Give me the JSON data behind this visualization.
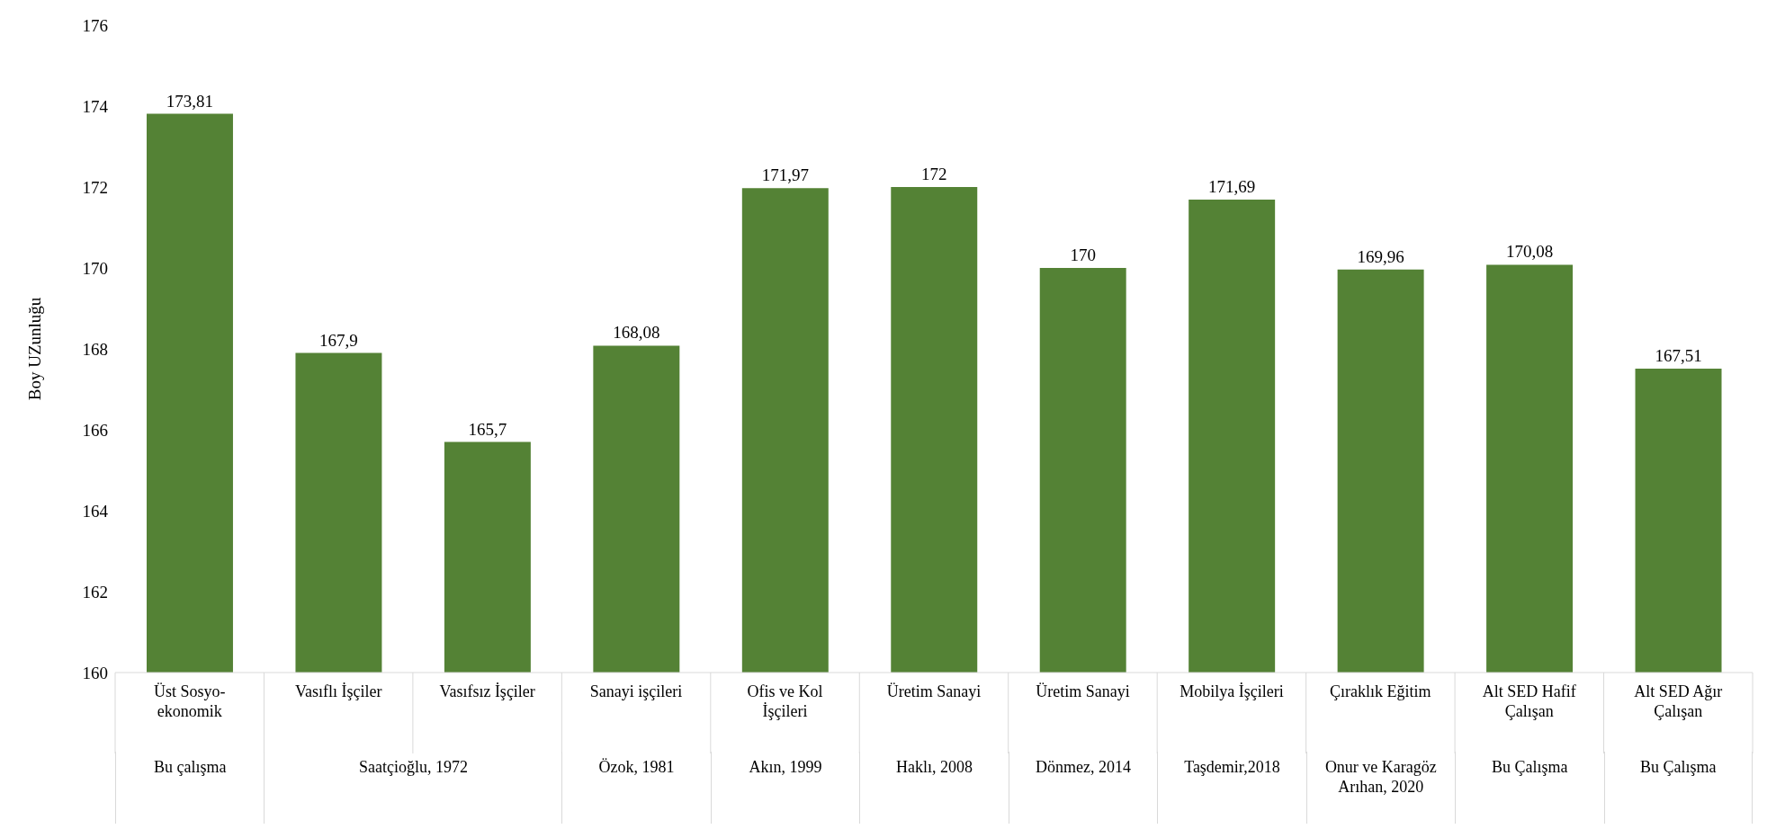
{
  "chart_data": {
    "type": "bar",
    "ylabel": "Boy UZunluğu",
    "categories": [
      "Üst Sosyo-ekonomik",
      "Vasıflı İşçiler",
      "Vasıfsız İşçiler",
      "Sanayi işçileri",
      "Ofis ve Kol İşçileri",
      "Üretim Sanayi",
      "Üretim Sanayi",
      "Mobilya İşçileri",
      "Çıraklık Eğitim",
      "Alt SED Hafif Çalışan",
      "Alt SED Ağır Çalışan"
    ],
    "values": [
      173.81,
      167.9,
      165.7,
      168.08,
      171.97,
      172,
      170,
      171.69,
      169.96,
      170.08,
      167.51
    ],
    "value_labels": [
      "173,81",
      "167,9",
      "165,7",
      "168,08",
      "171,97",
      "172",
      "170",
      "171,69",
      "169,96",
      "170,08",
      "167,51"
    ],
    "color": "#548235",
    "ylim": [
      160,
      176
    ],
    "yticks": [
      160,
      162,
      164,
      166,
      168,
      170,
      172,
      174,
      176
    ],
    "grid": false,
    "legend": false,
    "annotations": [
      "Bu çalışma",
      "Saatçioğlu, 1972",
      "Özok, 1981",
      "Akın, 1999",
      "Haklı, 2008",
      "Dönmez, 2014",
      "Taşdemir,2018",
      "Onur ve Karagöz Arıhan, 2020",
      "Bu Çalışma",
      "Bu Çalışma"
    ]
  }
}
